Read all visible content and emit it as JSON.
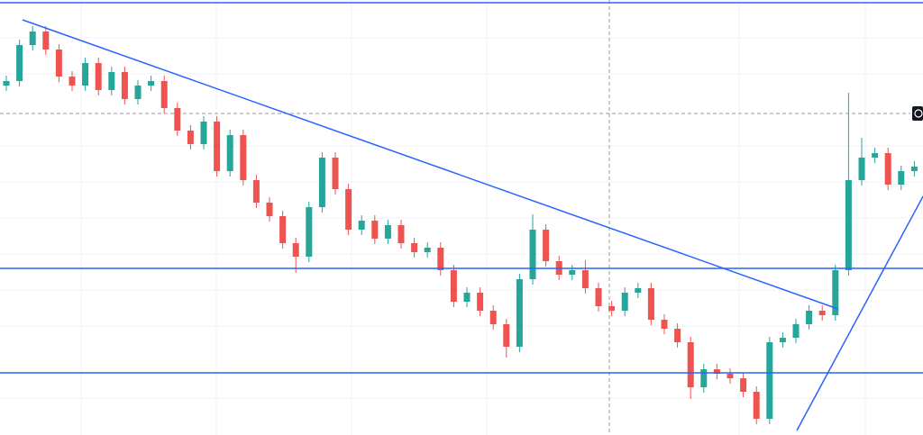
{
  "chart_data": {
    "type": "candlestick",
    "ylim": [
      0,
      483
    ],
    "open": [
      388,
      393,
      433,
      448,
      428,
      398,
      388,
      413,
      383,
      403,
      373,
      388,
      393,
      363,
      338,
      323,
      348,
      293,
      333,
      283,
      258,
      243,
      213,
      198,
      253,
      308,
      273,
      228,
      238,
      218,
      233,
      213,
      203,
      208,
      183,
      148,
      158,
      138,
      123,
      98,
      173,
      228,
      193,
      178,
      183,
      163,
      143,
      138,
      158,
      163,
      128,
      118,
      103,
      53,
      73,
      68,
      63,
      48,
      18,
      103,
      108,
      123,
      138,
      133,
      183,
      283,
      308,
      313,
      278,
      293
    ],
    "high": [
      399,
      439,
      454,
      454,
      434,
      404,
      419,
      419,
      409,
      409,
      394,
      399,
      399,
      369,
      344,
      354,
      354,
      339,
      339,
      289,
      264,
      249,
      219,
      259,
      314,
      314,
      279,
      244,
      244,
      239,
      239,
      219,
      214,
      214,
      189,
      164,
      164,
      144,
      129,
      179,
      245,
      234,
      199,
      189,
      194,
      169,
      149,
      164,
      169,
      169,
      134,
      124,
      109,
      79,
      79,
      74,
      69,
      54,
      109,
      114,
      129,
      144,
      144,
      189,
      380,
      330,
      319,
      319,
      299,
      304
    ],
    "low": [
      382,
      387,
      427,
      422,
      392,
      382,
      382,
      377,
      377,
      367,
      367,
      382,
      357,
      332,
      317,
      317,
      287,
      287,
      277,
      252,
      237,
      207,
      180,
      192,
      247,
      267,
      222,
      222,
      212,
      212,
      207,
      197,
      197,
      177,
      142,
      142,
      132,
      117,
      86,
      92,
      167,
      187,
      172,
      172,
      157,
      137,
      132,
      132,
      152,
      122,
      112,
      97,
      40,
      47,
      62,
      57,
      42,
      12,
      12,
      97,
      102,
      117,
      127,
      127,
      177,
      277,
      302,
      272,
      272,
      287
    ],
    "close": [
      393,
      433,
      448,
      428,
      398,
      388,
      413,
      383,
      403,
      373,
      388,
      393,
      363,
      338,
      323,
      348,
      293,
      333,
      283,
      258,
      243,
      213,
      198,
      253,
      308,
      273,
      228,
      238,
      218,
      233,
      213,
      203,
      208,
      183,
      148,
      158,
      138,
      123,
      98,
      173,
      228,
      193,
      178,
      183,
      163,
      143,
      138,
      158,
      163,
      128,
      118,
      103,
      53,
      73,
      68,
      63,
      48,
      18,
      103,
      108,
      123,
      138,
      133,
      183,
      283,
      308,
      313,
      278,
      293,
      298
    ],
    "up_color": "#26a69a",
    "down_color": "#ef5350",
    "hlines": [
      480,
      185,
      69
    ],
    "line_color": "#2962ff",
    "trendlines": [
      {
        "x": [
          1.23,
          63.2
        ],
        "y": [
          461,
          140
        ]
      },
      {
        "x": [
          60.07,
          69.66
        ],
        "y": [
          5,
          265
        ]
      }
    ]
  }
}
